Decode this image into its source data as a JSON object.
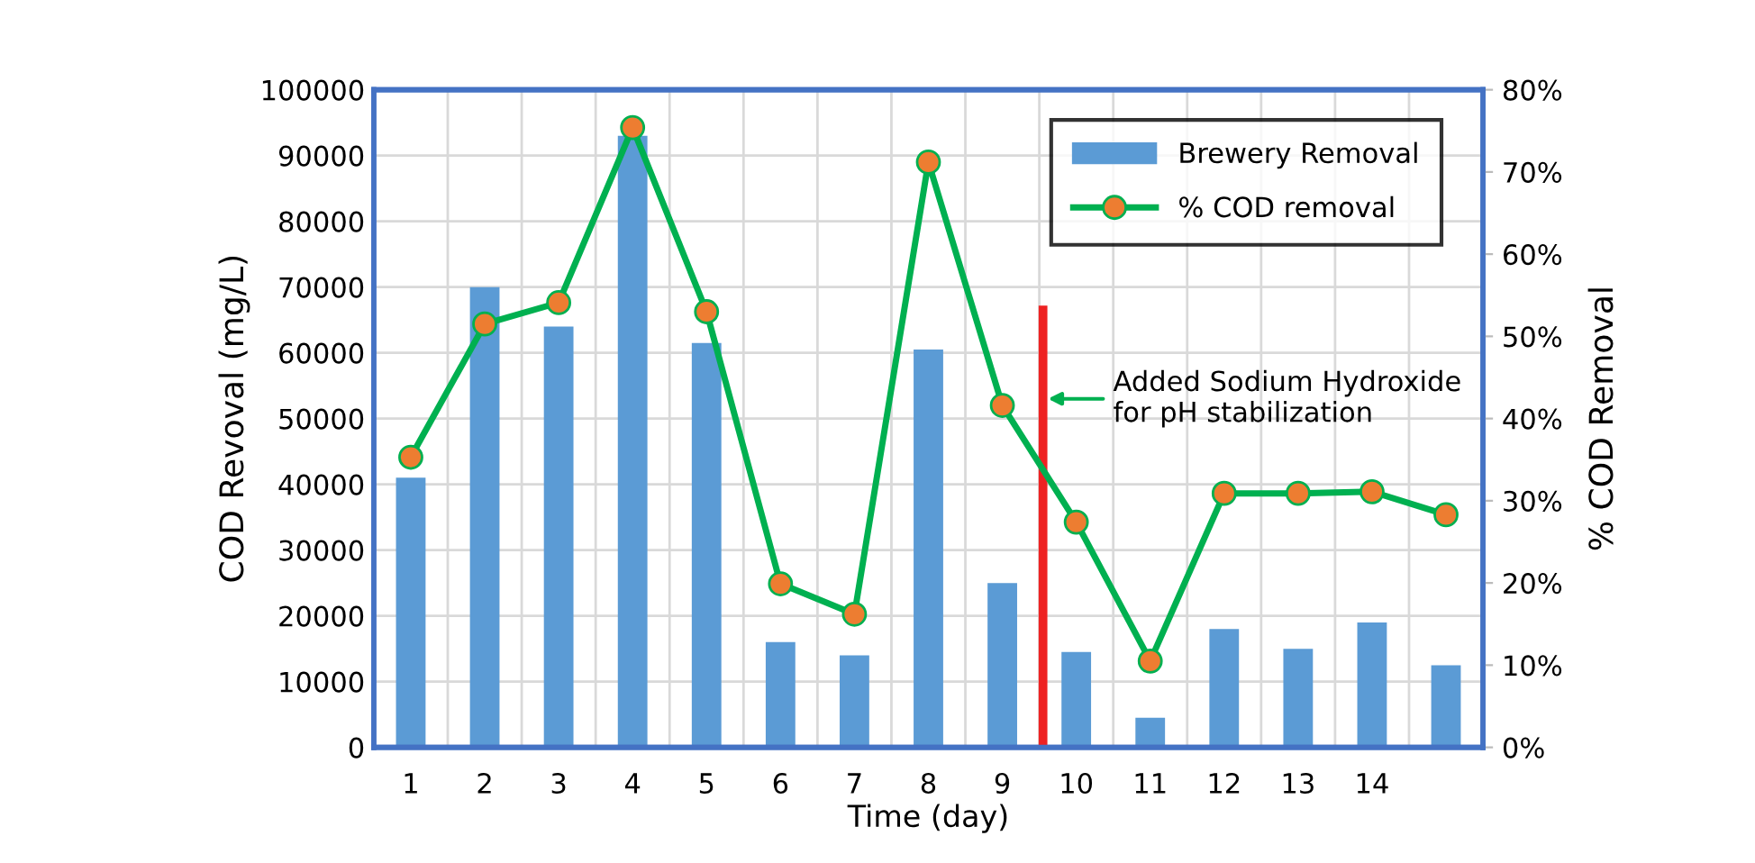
{
  "chart_data": {
    "type": "bar",
    "xlabel": "Time (day)",
    "ylabel": "COD Revoval (mg/L)",
    "y2label": "% COD Removal",
    "x": [
      1,
      2,
      3,
      4,
      5,
      6,
      7,
      8,
      9,
      10,
      11,
      12,
      13,
      14,
      15
    ],
    "xlim": [
      0.5,
      15.5
    ],
    "xticks": [
      1,
      2,
      3,
      4,
      5,
      6,
      7,
      8,
      9,
      10,
      11,
      12,
      13,
      14
    ],
    "ylim": [
      0,
      100000
    ],
    "yticks": [
      0,
      10000,
      20000,
      30000,
      40000,
      50000,
      60000,
      70000,
      80000,
      90000,
      100000
    ],
    "y2lim": [
      0,
      80
    ],
    "y2ticks": [
      {
        "value": 0,
        "label": "0%"
      },
      {
        "value": 10,
        "label": "10%"
      },
      {
        "value": 20,
        "label": "20%"
      },
      {
        "value": 30,
        "label": "30%"
      },
      {
        "value": 40,
        "label": "40%"
      },
      {
        "value": 50,
        "label": "50%"
      },
      {
        "value": 60,
        "label": "60%"
      },
      {
        "value": 70,
        "label": "70%"
      },
      {
        "value": 80,
        "label": "80%"
      }
    ],
    "series": [
      {
        "name": "Brewery Removal",
        "color": "#5b9bd5",
        "values": [
          41000,
          70000,
          64000,
          93000,
          61500,
          16000,
          14000,
          60500,
          25000,
          14500,
          4500,
          18000,
          15000,
          19000,
          12500
        ]
      },
      {
        "name": "% COD removal",
        "type": "line",
        "axis": "y2",
        "color": "#00b050",
        "marker": "circle",
        "values": [
          35.3,
          51.5,
          54.1,
          75.4,
          53.0,
          19.9,
          16.2,
          71.2,
          41.6,
          27.4,
          10.5,
          30.9,
          30.9,
          31.1,
          28.3
        ]
      },
      {
        "type": "line",
        "color": "#ee2222",
        "marker": "none",
        "x": [
          9.55,
          9.55
        ],
        "values": [
          0,
          66500
        ]
      }
    ],
    "annotations": [
      {
        "text": "Added Sodium Hydroxide\nfor pH stabilization",
        "x": 9.55,
        "y": 53000
      }
    ],
    "grid": true,
    "legend": "top right"
  }
}
